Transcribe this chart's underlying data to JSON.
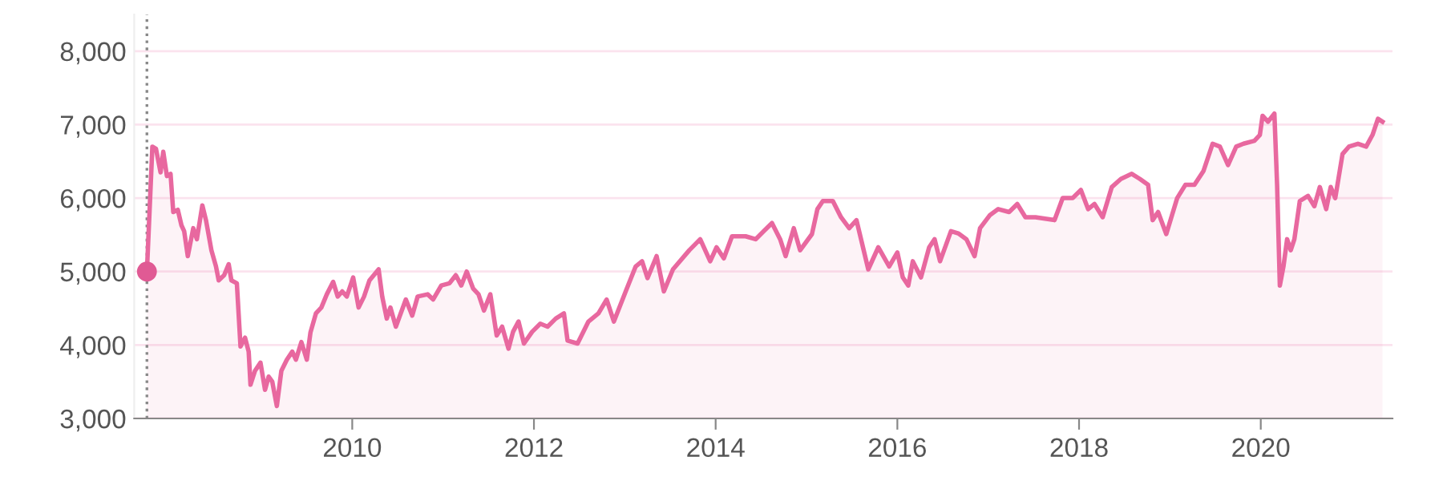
{
  "chart_data": {
    "type": "area",
    "xlim": [
      2007.6,
      2021.45
    ],
    "ylim": [
      3000,
      8500
    ],
    "xticks": [
      2010,
      2012,
      2014,
      2016,
      2018,
      2020
    ],
    "yticks": [
      {
        "value": 3000,
        "label": "3,000"
      },
      {
        "value": 4000,
        "label": "4,000"
      },
      {
        "value": 5000,
        "label": "5,000"
      },
      {
        "value": 6000,
        "label": "6,000"
      },
      {
        "value": 7000,
        "label": "7,000"
      },
      {
        "value": 8000,
        "label": "8,000"
      }
    ],
    "grid": "y",
    "legend": false,
    "line_style": "solid",
    "ref_lines": [
      {
        "axis": "x",
        "value": 2007.74,
        "label": null,
        "color": "#888888",
        "line_style": "dotted"
      }
    ],
    "series": [
      {
        "color": "#e8689f",
        "marker": "none",
        "x": [
          2007.74,
          2007.8,
          2007.84,
          2007.89,
          2007.92,
          2007.96,
          2008.0,
          2008.03,
          2008.08,
          2008.12,
          2008.15,
          2008.19,
          2008.25,
          2008.29,
          2008.35,
          2008.39,
          2008.45,
          2008.5,
          2008.53,
          2008.59,
          2008.64,
          2008.67,
          2008.73,
          2008.77,
          2008.82,
          2008.86,
          2008.88,
          2008.93,
          2008.99,
          2009.04,
          2009.08,
          2009.12,
          2009.17,
          2009.22,
          2009.28,
          2009.34,
          2009.38,
          2009.44,
          2009.5,
          2009.54,
          2009.6,
          2009.66,
          2009.72,
          2009.79,
          2009.84,
          2009.89,
          2009.94,
          2010.01,
          2010.07,
          2010.13,
          2010.19,
          2010.29,
          2010.33,
          2010.38,
          2010.42,
          2010.48,
          2010.59,
          2010.66,
          2010.72,
          2010.83,
          2010.89,
          2010.98,
          2011.07,
          2011.14,
          2011.2,
          2011.26,
          2011.33,
          2011.39,
          2011.45,
          2011.52,
          2011.59,
          2011.65,
          2011.72,
          2011.77,
          2011.83,
          2011.89,
          2011.98,
          2012.07,
          2012.15,
          2012.24,
          2012.33,
          2012.37,
          2012.48,
          2012.6,
          2012.71,
          2012.8,
          2012.88,
          2013.01,
          2013.12,
          2013.19,
          2013.25,
          2013.35,
          2013.43,
          2013.53,
          2013.71,
          2013.83,
          2013.94,
          2014.01,
          2014.09,
          2014.18,
          2014.33,
          2014.44,
          2014.53,
          2014.62,
          2014.71,
          2014.77,
          2014.86,
          2014.93,
          2015.06,
          2015.12,
          2015.18,
          2015.29,
          2015.38,
          2015.47,
          2015.55,
          2015.68,
          2015.79,
          2015.91,
          2016.0,
          2016.06,
          2016.12,
          2016.17,
          2016.26,
          2016.35,
          2016.41,
          2016.47,
          2016.59,
          2016.67,
          2016.76,
          2016.85,
          2016.91,
          2017.02,
          2017.11,
          2017.23,
          2017.32,
          2017.41,
          2017.52,
          2017.73,
          2017.82,
          2017.93,
          2018.02,
          2018.1,
          2018.17,
          2018.26,
          2018.36,
          2018.46,
          2018.58,
          2018.67,
          2018.76,
          2018.81,
          2018.87,
          2018.96,
          2019.08,
          2019.17,
          2019.27,
          2019.37,
          2019.47,
          2019.55,
          2019.64,
          2019.73,
          2019.81,
          2019.93,
          2019.99,
          2020.02,
          2020.08,
          2020.15,
          2020.18,
          2020.21,
          2020.25,
          2020.29,
          2020.33,
          2020.37,
          2020.43,
          2020.52,
          2020.59,
          2020.65,
          2020.72,
          2020.77,
          2020.82,
          2020.9,
          2020.97,
          2021.07,
          2021.16,
          2021.23,
          2021.29,
          2021.34
        ],
        "values": [
          5000,
          6700,
          6670,
          6350,
          6630,
          6300,
          6330,
          5810,
          5840,
          5630,
          5550,
          5210,
          5590,
          5440,
          5900,
          5700,
          5290,
          5070,
          4880,
          4950,
          5100,
          4880,
          4840,
          3980,
          4100,
          3910,
          3460,
          3650,
          3760,
          3390,
          3570,
          3500,
          3170,
          3650,
          3800,
          3910,
          3800,
          4040,
          3800,
          4170,
          4430,
          4510,
          4690,
          4860,
          4660,
          4730,
          4660,
          4920,
          4510,
          4660,
          4880,
          5030,
          4660,
          4360,
          4510,
          4250,
          4620,
          4400,
          4660,
          4690,
          4620,
          4810,
          4840,
          4950,
          4810,
          5000,
          4770,
          4690,
          4470,
          4690,
          4130,
          4250,
          3950,
          4180,
          4320,
          4020,
          4180,
          4290,
          4250,
          4360,
          4430,
          4060,
          4020,
          4320,
          4430,
          4620,
          4320,
          4730,
          5070,
          5140,
          4910,
          5210,
          4730,
          5030,
          5290,
          5440,
          5140,
          5330,
          5180,
          5480,
          5480,
          5440,
          5550,
          5660,
          5440,
          5210,
          5590,
          5290,
          5510,
          5850,
          5960,
          5960,
          5740,
          5590,
          5700,
          5030,
          5330,
          5070,
          5260,
          4920,
          4810,
          5140,
          4920,
          5330,
          5440,
          5140,
          5550,
          5520,
          5440,
          5210,
          5590,
          5770,
          5850,
          5810,
          5920,
          5740,
          5740,
          5700,
          6000,
          6000,
          6110,
          5850,
          5920,
          5740,
          6150,
          6260,
          6330,
          6260,
          6180,
          5700,
          5810,
          5510,
          6000,
          6180,
          6180,
          6370,
          6740,
          6700,
          6450,
          6700,
          6740,
          6780,
          6860,
          7120,
          7040,
          7150,
          6180,
          4810,
          5070,
          5440,
          5290,
          5440,
          5960,
          6030,
          5890,
          6150,
          5850,
          6150,
          6000,
          6600,
          6700,
          6740,
          6700,
          6860,
          7080,
          7040
        ]
      },
      {
        "type": "scatter",
        "color": "#e05a94",
        "marker": "circle",
        "x": [
          2007.74
        ],
        "values": [
          5000
        ]
      }
    ]
  }
}
